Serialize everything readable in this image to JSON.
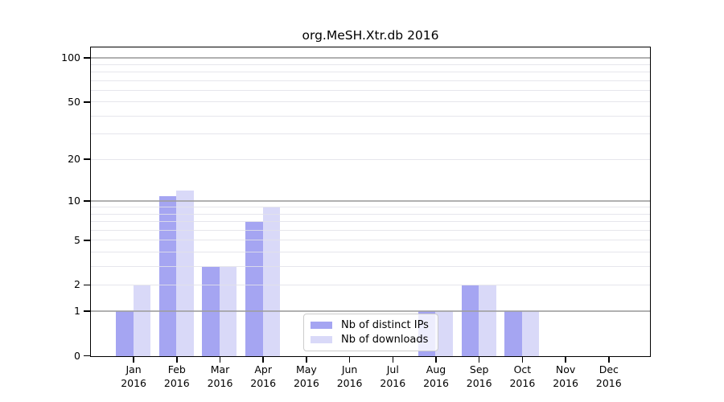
{
  "chart_data": {
    "type": "bar",
    "title": "org.MeSH.Xtr.db 2016",
    "x_categories": [
      "Jan",
      "Feb",
      "Mar",
      "Apr",
      "May",
      "Jun",
      "Jul",
      "Aug",
      "Sep",
      "Oct",
      "Nov",
      "Dec"
    ],
    "x_year": "2016",
    "series": [
      {
        "name": "Nb of distinct IPs",
        "color": "#a5a5f2",
        "values": [
          1,
          11,
          3,
          7,
          0,
          0,
          0,
          1,
          2,
          1,
          0,
          0
        ]
      },
      {
        "name": "Nb of downloads",
        "color": "#d9d9f8",
        "values": [
          2,
          12,
          3,
          9,
          0,
          0,
          0,
          1,
          2,
          1,
          0,
          0
        ]
      }
    ],
    "y_axis": {
      "scale": "log10(1+y)",
      "tick_labels": [
        0,
        1,
        2,
        5,
        10,
        20,
        50,
        100
      ],
      "major_gridlines": [
        1,
        10,
        100
      ],
      "minor_gridlines": [
        2,
        3,
        4,
        5,
        6,
        7,
        8,
        9,
        20,
        30,
        40,
        50,
        60,
        70,
        80,
        90
      ],
      "ylim": [
        0,
        117
      ]
    },
    "legend": {
      "position": "inside-bottom-right",
      "entries": [
        "Nb of distinct IPs",
        "Nb of downloads"
      ]
    },
    "grid": true
  },
  "colors": {
    "axis": "#000000",
    "major_grid": "#9e9e9e",
    "minor_grid": "#e2e2e9",
    "background": "#ffffff",
    "legend_border": "#cccccc"
  }
}
